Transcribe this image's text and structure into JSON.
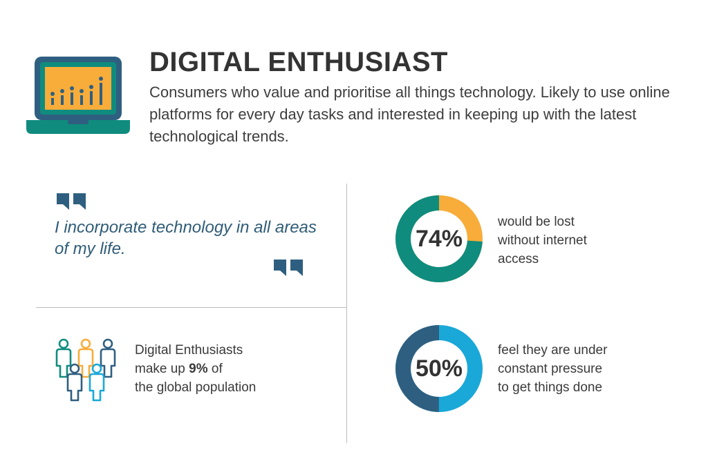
{
  "header": {
    "title": "DIGITAL ENTHUSIAST",
    "description": "Consumers who value and prioritise all things technology. Likely to use online platforms for every day tasks and interested in keeping up with the latest technological trends.",
    "icon": "laptop-chart-icon"
  },
  "quote": {
    "text": "I incorporate technology in all areas of my life."
  },
  "population": {
    "icon": "people-group-icon",
    "line1": "Digital Enthusiasts",
    "line2_prefix": "make up ",
    "line2_value": "9%",
    "line2_suffix": " of",
    "line3": "the global population"
  },
  "stats": [
    {
      "percent": 74,
      "label": "74%",
      "lines": [
        "would be lost",
        "without internet",
        "access"
      ],
      "colors": {
        "main": "#0f8c7e",
        "rest": "#f8ac3a"
      }
    },
    {
      "percent": 50,
      "label": "50%",
      "lines": [
        "feel they are under",
        "constant pressure",
        "to get things done"
      ],
      "colors": {
        "main": "#2f5f80",
        "rest": "#19a8d8"
      }
    }
  ],
  "colors": {
    "teal": "#0f8c7e",
    "orange": "#f8ac3a",
    "navy": "#2f5f80",
    "cyan": "#19a8d8",
    "quote_blue": "#2f5c78"
  }
}
